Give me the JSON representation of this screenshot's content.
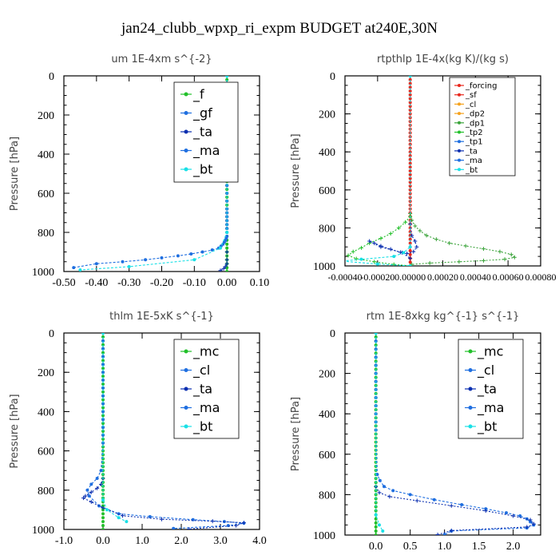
{
  "figure": {
    "title": "jan24_clubb_wpxp_ri_expm  BUDGET at240E,30N"
  },
  "colors": {
    "blue": "#1f6fe0",
    "dark_blue": "#0b2fb0",
    "green": "#22c02a",
    "red": "#e8271c",
    "orange": "#f5a21c",
    "cyan": "#19e0e6",
    "olive": "#3aa33a"
  },
  "chart_data": [
    {
      "type": "line",
      "title": "um   1E-4xm s^{-2}",
      "ylabel": "Pressure [hPa]",
      "xlim": [
        -0.5,
        0.1
      ],
      "ylim": [
        1000,
        0
      ],
      "xticks": [
        -0.5,
        -0.4,
        -0.3,
        -0.2,
        -0.1,
        0.0,
        0.1
      ],
      "xtick_labels": [
        "-0.50",
        "-0.40",
        "-0.30",
        "-0.20",
        "-0.10",
        "0.00",
        "0.10"
      ],
      "yticks": [
        0,
        200,
        400,
        600,
        800,
        1000
      ],
      "ytick_labels": [
        "0",
        "200",
        "400",
        "600",
        "800",
        "1000"
      ],
      "legend": {
        "placement": "top-right",
        "entries": [
          "_f",
          "_gf",
          "_ta",
          "_ma",
          "_bt"
        ]
      },
      "series": [
        {
          "name": "_f",
          "color": "green",
          "marker": "dot",
          "x": [
            0,
            0,
            0,
            0,
            0,
            0,
            0,
            0,
            0,
            0,
            0,
            0,
            0,
            0,
            0,
            0,
            0,
            0,
            0,
            0,
            0,
            0,
            0,
            0,
            0,
            0,
            0,
            0,
            0,
            0,
            0,
            0,
            0,
            0,
            0,
            0,
            0,
            0,
            0,
            0,
            0,
            0,
            0,
            0,
            0,
            0,
            0,
            0,
            0,
            0,
            0
          ],
          "y": [
            0,
            20,
            40,
            60,
            80,
            100,
            120,
            140,
            160,
            180,
            200,
            220,
            240,
            260,
            280,
            300,
            320,
            340,
            360,
            380,
            400,
            420,
            440,
            460,
            480,
            500,
            520,
            540,
            560,
            580,
            600,
            620,
            640,
            660,
            680,
            700,
            720,
            740,
            760,
            780,
            800,
            820,
            840,
            860,
            880,
            900,
            920,
            940,
            960,
            980,
            1000
          ]
        },
        {
          "name": "_gf",
          "color": "blue",
          "marker": "dot",
          "x": [
            0,
            0,
            0,
            0,
            0,
            0,
            0,
            0,
            0,
            0,
            0,
            0,
            0,
            0,
            0,
            0,
            0,
            0,
            0,
            0,
            0,
            0,
            0,
            0,
            0,
            -0.002,
            -0.004,
            -0.008,
            -0.012,
            -0.018,
            -0.025,
            -0.045,
            -0.075,
            -0.11,
            -0.15,
            -0.2,
            -0.25,
            -0.32,
            -0.4,
            -0.47
          ],
          "y": [
            0,
            40,
            80,
            120,
            160,
            200,
            240,
            280,
            320,
            360,
            400,
            440,
            480,
            520,
            560,
            600,
            640,
            680,
            700,
            720,
            740,
            760,
            780,
            800,
            820,
            830,
            840,
            850,
            860,
            870,
            880,
            890,
            900,
            910,
            920,
            930,
            940,
            950,
            960,
            980
          ]
        },
        {
          "name": "_ta",
          "color": "dark_blue",
          "marker": "plus",
          "x": [
            0,
            0,
            0,
            -0.005,
            -0.01,
            -0.02
          ],
          "y": [
            900,
            940,
            960,
            975,
            985,
            995
          ]
        },
        {
          "name": "_bt",
          "color": "cyan",
          "marker": "dot",
          "x": [
            0,
            0,
            -0.02,
            -0.1,
            -0.3,
            -0.45
          ],
          "y": [
            0,
            800,
            880,
            940,
            975,
            992
          ]
        }
      ]
    },
    {
      "type": "line",
      "title": "rtpthlp   1E-4x(kg K)/(kg s)",
      "ylabel": "Pressure [hPa]",
      "xlim": [
        -0.0004,
        0.0008
      ],
      "ylim": [
        1000,
        0
      ],
      "xticks": [
        -0.0004,
        -0.0002,
        0.0,
        0.0002,
        0.0004,
        0.0006,
        0.0008
      ],
      "xtick_labels": [
        "-0.00040",
        "-0.00020",
        "0.00000",
        "0.00020",
        "0.00040",
        "0.00060",
        "0.00080"
      ],
      "yticks": [
        0,
        200,
        400,
        600,
        800,
        1000
      ],
      "ytick_labels": [
        "0",
        "200",
        "400",
        "600",
        "800",
        "1000"
      ],
      "legend": {
        "placement": "top-right",
        "entries": [
          "_forcing",
          "_sf",
          "_cl",
          "_dp2",
          "_dp1",
          "_tp2",
          "_tp1",
          "_ta",
          "_ma",
          "_bt"
        ]
      },
      "series": [
        {
          "name": "_forcing",
          "color": "red",
          "marker": "dot",
          "x": [
            0,
            0,
            0,
            0,
            0,
            0,
            0,
            0,
            0,
            0,
            0,
            0,
            0,
            0,
            0,
            0,
            0,
            0,
            0,
            0,
            0,
            0,
            0,
            0,
            0,
            0,
            0,
            0,
            0,
            0,
            0,
            0,
            0,
            0,
            0,
            0,
            0,
            0,
            0,
            0,
            0,
            0,
            0,
            0,
            0,
            0,
            0,
            0,
            0,
            0,
            0
          ],
          "y": [
            0,
            20,
            40,
            60,
            80,
            100,
            120,
            140,
            160,
            180,
            200,
            220,
            240,
            260,
            280,
            300,
            320,
            340,
            360,
            380,
            400,
            420,
            440,
            460,
            480,
            500,
            520,
            540,
            560,
            580,
            600,
            620,
            640,
            660,
            680,
            700,
            720,
            740,
            760,
            780,
            800,
            820,
            840,
            860,
            880,
            900,
            920,
            940,
            960,
            980,
            1000
          ]
        },
        {
          "name": "_dp1",
          "color": "olive",
          "marker": "plus",
          "x": [
            0,
            1e-05,
            3e-05,
            6e-05,
            0.0001,
            0.00016,
            0.00024,
            0.00034,
            0.00045,
            0.00055,
            0.00062,
            0.00064,
            0.00058,
            0.00045,
            0.0003,
            0.00012,
            1e-05,
            0
          ],
          "y": [
            725,
            760,
            790,
            815,
            840,
            860,
            880,
            895,
            910,
            925,
            940,
            955,
            965,
            972,
            978,
            985,
            992,
            1000
          ]
        },
        {
          "name": "_tp2",
          "color": "green",
          "marker": "plus",
          "x": [
            0,
            -3e-05,
            -7e-05,
            -0.00012,
            -0.00018,
            -0.00025,
            -0.0003,
            -0.00035,
            -0.00038,
            -0.00033,
            -0.00022,
            -0.0001,
            0
          ],
          "y": [
            740,
            770,
            800,
            830,
            855,
            880,
            905,
            925,
            945,
            962,
            978,
            992,
            1000
          ]
        },
        {
          "name": "_ta",
          "color": "dark_blue",
          "marker": "plus",
          "x": [
            0,
            1e-05,
            3e-05,
            4e-05,
            2e-05,
            -2e-05,
            -6e-05,
            -0.00012,
            -0.00018,
            -0.00022,
            -0.00025,
            -0.00018,
            -5e-05,
            0
          ],
          "y": [
            780,
            840,
            870,
            900,
            925,
            935,
            928,
            912,
            895,
            880,
            870,
            900,
            930,
            960
          ]
        },
        {
          "name": "_bt",
          "color": "cyan",
          "marker": "dot",
          "x": [
            0,
            0,
            -4e-05,
            -0.0001,
            -0.0003,
            -0.00042,
            -0.0002,
            0
          ],
          "y": [
            0,
            900,
            930,
            950,
            965,
            975,
            990,
            1000
          ]
        }
      ]
    },
    {
      "type": "line",
      "title": "thlm   1E-5xK s^{-1}",
      "ylabel": "Pressure [hPa]",
      "xlim": [
        -1.0,
        4.0
      ],
      "ylim": [
        1000,
        0
      ],
      "xticks": [
        -1,
        0,
        1,
        2,
        3,
        4
      ],
      "xtick_labels": [
        "-1.0",
        "0.0",
        "1.0",
        "2.0",
        "3.0",
        "4.0"
      ],
      "yticks": [
        0,
        200,
        400,
        600,
        800,
        1000
      ],
      "ytick_labels": [
        "0",
        "200",
        "400",
        "600",
        "800",
        "1000"
      ],
      "legend": {
        "placement": "top-right",
        "entries": [
          "_mc",
          "_cl",
          "_ta",
          "_ma",
          "_bt"
        ]
      },
      "series": [
        {
          "name": "_mc",
          "color": "green",
          "marker": "dot",
          "x": [
            0,
            0,
            0,
            0,
            0,
            0,
            0,
            0,
            0,
            0,
            0,
            0,
            0,
            0,
            0,
            0,
            0,
            0,
            0,
            0,
            0,
            0,
            0,
            0,
            0,
            0,
            0,
            0,
            0,
            0,
            0,
            0,
            0,
            0,
            0,
            0,
            0,
            0,
            0,
            0,
            0,
            0,
            0,
            0,
            0,
            0,
            0,
            0,
            0,
            0,
            0
          ],
          "y": [
            0,
            20,
            40,
            60,
            80,
            100,
            120,
            140,
            160,
            180,
            200,
            220,
            240,
            260,
            280,
            300,
            320,
            340,
            360,
            380,
            400,
            420,
            440,
            460,
            480,
            500,
            520,
            540,
            560,
            580,
            600,
            620,
            640,
            660,
            680,
            700,
            720,
            740,
            760,
            780,
            800,
            820,
            840,
            860,
            880,
            900,
            920,
            940,
            960,
            980,
            1000
          ]
        },
        {
          "name": "_cl",
          "color": "blue",
          "marker": "dot",
          "x": [
            0,
            0,
            0,
            0,
            0,
            0,
            0,
            0,
            0,
            0,
            0,
            0,
            0,
            0,
            0,
            -0.05,
            -0.15,
            -0.3,
            -0.4,
            -0.35,
            -0.1,
            0.4,
            1.2,
            2.3,
            3.1,
            3.6,
            3.2,
            1.8
          ],
          "y": [
            0,
            40,
            80,
            120,
            160,
            200,
            240,
            280,
            320,
            360,
            400,
            440,
            480,
            520,
            560,
            700,
            740,
            770,
            800,
            830,
            880,
            920,
            935,
            950,
            960,
            968,
            980,
            995
          ]
        },
        {
          "name": "_ta",
          "color": "dark_blue",
          "marker": "plus",
          "x": [
            0,
            -0.05,
            -0.15,
            -0.3,
            -0.45,
            -0.5,
            -0.3,
            0,
            0.5,
            1.5,
            2.8,
            3.6,
            3.4,
            2.2
          ],
          "y": [
            740,
            770,
            790,
            810,
            830,
            840,
            860,
            890,
            930,
            948,
            958,
            966,
            980,
            998
          ]
        },
        {
          "name": "_bt",
          "color": "cyan",
          "marker": "dot",
          "x": [
            0,
            0,
            0.1,
            0.4,
            0.6
          ],
          "y": [
            0,
            850,
            900,
            940,
            960
          ]
        }
      ]
    },
    {
      "type": "line",
      "title": "rtm   1E-8xkg kg^{-1} s^{-1}",
      "ylabel": "Pressure [hPa]",
      "xlim": [
        -0.45,
        2.4
      ],
      "ylim": [
        1000,
        0
      ],
      "xticks": [
        0.0,
        0.5,
        1.0,
        1.5,
        2.0
      ],
      "xtick_labels": [
        "0.0",
        "0.5",
        "1.0",
        "1.5",
        "2.0"
      ],
      "yticks": [
        0,
        200,
        400,
        600,
        800,
        1000
      ],
      "ytick_labels": [
        "0",
        "200",
        "400",
        "600",
        "800",
        "1000"
      ],
      "legend": {
        "placement": "top-right",
        "entries": [
          "_mc",
          "_cl",
          "_ta",
          "_ma",
          "_bt"
        ]
      },
      "series": [
        {
          "name": "_mc",
          "color": "green",
          "marker": "dot",
          "x": [
            0,
            0,
            0,
            0,
            0,
            0,
            0,
            0,
            0,
            0,
            0,
            0,
            0,
            0,
            0,
            0,
            0,
            0,
            0,
            0,
            0,
            0,
            0,
            0,
            0,
            0,
            0,
            0,
            0,
            0,
            0,
            0,
            0,
            0,
            0,
            0,
            0,
            0,
            0,
            0,
            0,
            0,
            0,
            0,
            0,
            0,
            0,
            0,
            0,
            0,
            0
          ],
          "y": [
            0,
            20,
            40,
            60,
            80,
            100,
            120,
            140,
            160,
            180,
            200,
            220,
            240,
            260,
            280,
            300,
            320,
            340,
            360,
            380,
            400,
            420,
            440,
            460,
            480,
            500,
            520,
            540,
            560,
            580,
            600,
            620,
            640,
            660,
            680,
            700,
            720,
            740,
            760,
            780,
            800,
            820,
            840,
            860,
            880,
            900,
            920,
            940,
            960,
            980,
            1000
          ]
        },
        {
          "name": "_cl",
          "color": "blue",
          "marker": "dot",
          "x": [
            0,
            0,
            0,
            0,
            0,
            0,
            0,
            0,
            0,
            0,
            0,
            0,
            0,
            0.02,
            0.06,
            0.12,
            0.25,
            0.5,
            0.85,
            1.25,
            1.6,
            1.9,
            2.1,
            2.2,
            2.25,
            2.3,
            2.2,
            1.1,
            1.0
          ],
          "y": [
            0,
            40,
            80,
            120,
            160,
            200,
            240,
            280,
            320,
            360,
            400,
            440,
            480,
            700,
            730,
            760,
            780,
            800,
            825,
            850,
            870,
            890,
            905,
            920,
            935,
            950,
            965,
            980,
            998
          ]
        },
        {
          "name": "_ta",
          "color": "dark_blue",
          "marker": "plus",
          "x": [
            0,
            0.05,
            0.2,
            0.6,
            1.1,
            1.6,
            2.0,
            2.25,
            2.3,
            2.2,
            1.1,
            0.9
          ],
          "y": [
            760,
            790,
            810,
            830,
            855,
            880,
            905,
            925,
            945,
            960,
            978,
            998
          ]
        },
        {
          "name": "_bt",
          "color": "cyan",
          "marker": "dot",
          "x": [
            0,
            0,
            0.05,
            0.1
          ],
          "y": [
            0,
            900,
            950,
            980
          ]
        }
      ]
    }
  ]
}
